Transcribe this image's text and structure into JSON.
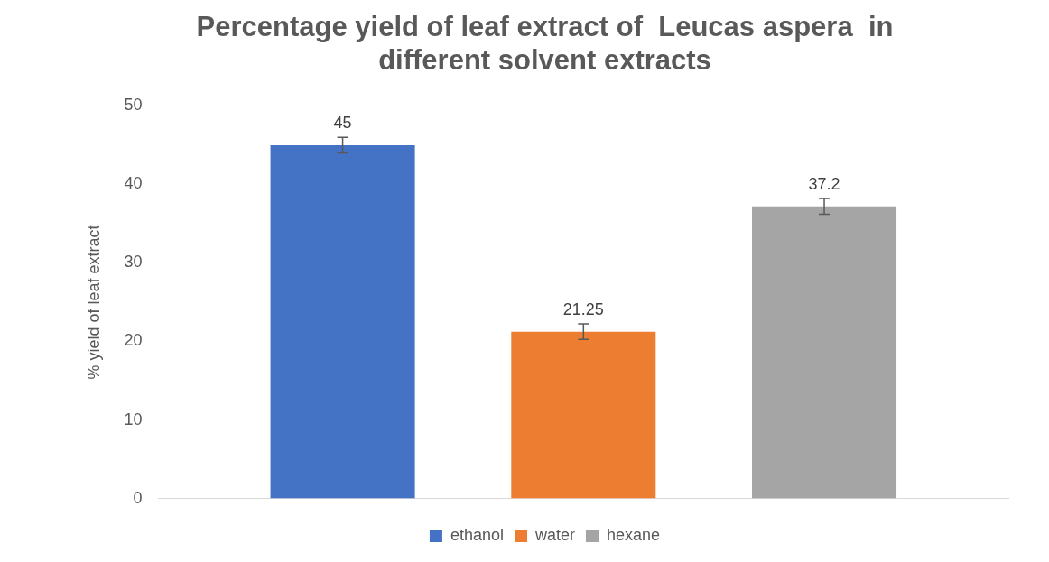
{
  "chart_data": {
    "type": "bar",
    "title": [
      "Percentage yield of leaf extract of  Leucas aspera  in",
      "different solvent extracts"
    ],
    "ylabel": "% yield of leaf extract",
    "categories": [
      null
    ],
    "series": [
      {
        "name": "ethanol",
        "color": "#4472c4",
        "values": [
          45
        ],
        "errors": [
          1
        ]
      },
      {
        "name": "water",
        "color": "#ed7d31",
        "values": [
          21.25
        ],
        "errors": [
          1
        ]
      },
      {
        "name": "hexane",
        "color": "#a5a5a5",
        "values": [
          37.2
        ],
        "errors": [
          1
        ]
      }
    ],
    "ylim": [
      0,
      50
    ],
    "yticks": [
      0,
      10,
      20,
      30,
      40,
      50
    ],
    "grid": false,
    "legend": "bottom",
    "data_labels": true
  }
}
